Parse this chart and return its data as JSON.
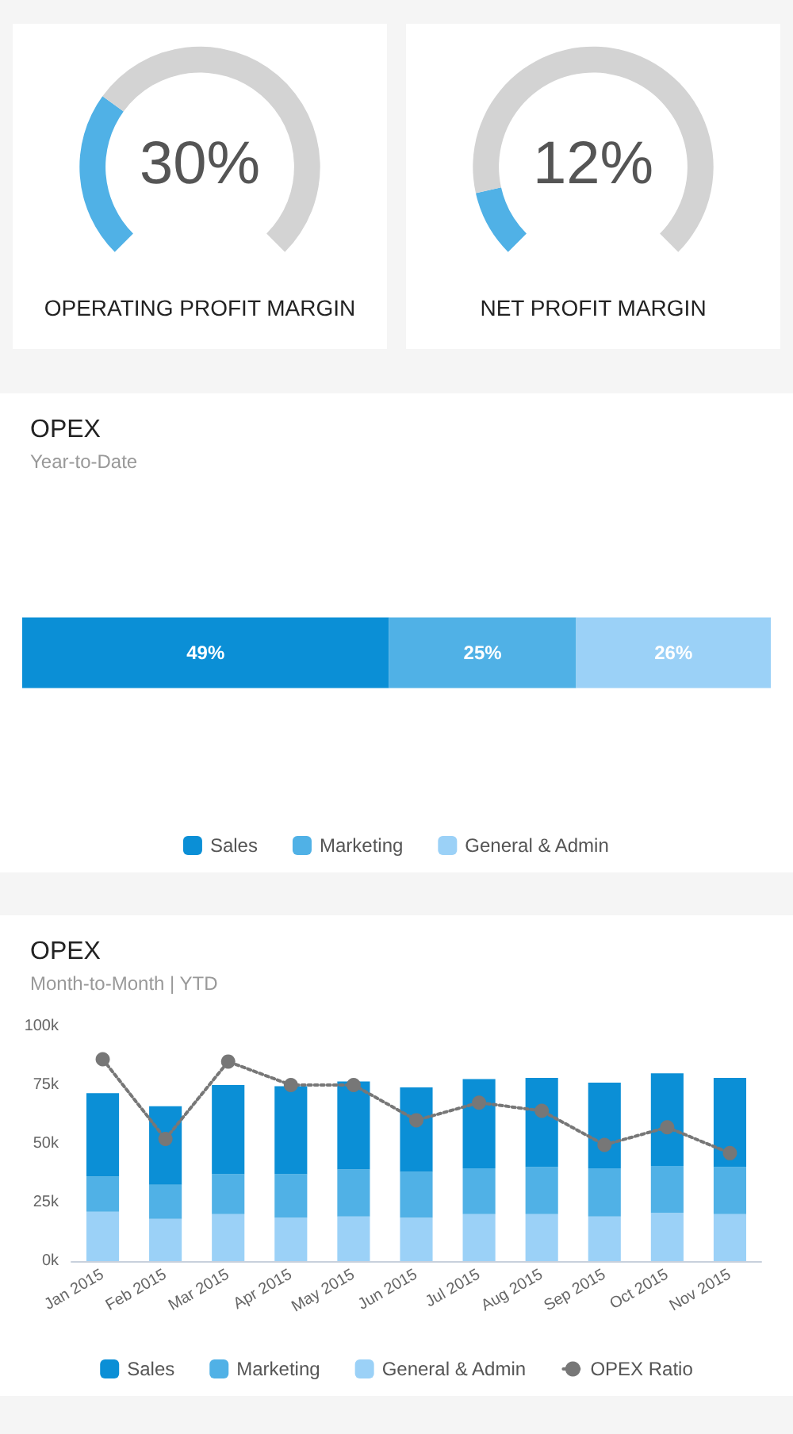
{
  "chart_data": [
    {
      "type": "donut",
      "title": "OPERATING PROFIT MARGIN",
      "annotations": [
        "30%"
      ],
      "categories": [
        null,
        null
      ],
      "values": [
        30,
        70
      ],
      "colors": [
        "#50b1e6",
        "#d3d3d3"
      ],
      "legend": false
    },
    {
      "type": "donut",
      "title": "NET PROFIT MARGIN",
      "annotations": [
        "12%"
      ],
      "categories": [
        null,
        null
      ],
      "values": [
        12,
        88
      ],
      "colors": [
        "#50b1e6",
        "#d3d3d3"
      ],
      "legend": false
    },
    {
      "type": "bar",
      "title": "OPEX",
      "subtitle": "Year-to-Date",
      "orientation": "horizontal",
      "stacked": true,
      "categories": [
        null
      ],
      "legend": "bottom",
      "series": [
        {
          "name": "Sales",
          "color": "#0b8fd6",
          "values": [
            49
          ],
          "value_labels": [
            "49%"
          ]
        },
        {
          "name": "Marketing",
          "color": "#50b1e6",
          "values": [
            25
          ],
          "value_labels": [
            "25%"
          ]
        },
        {
          "name": "General & Admin",
          "color": "#9bd1f7",
          "values": [
            26
          ],
          "value_labels": [
            "26%"
          ]
        }
      ]
    },
    {
      "type": "bar",
      "title": "OPEX",
      "subtitle": "Month-to-Month | YTD",
      "stacked": true,
      "categories": [
        "Jan 2015",
        "Feb 2015",
        "Mar 2015",
        "Apr 2015",
        "May 2015",
        "Jun 2015",
        "Jul 2015",
        "Aug 2015",
        "Sep 2015",
        "Oct 2015",
        "Nov 2015"
      ],
      "ylim": [
        0,
        100
      ],
      "yticks": [
        {
          "value": 0,
          "label": "0k"
        },
        {
          "value": 25,
          "label": "25k"
        },
        {
          "value": 50,
          "label": "50k"
        },
        {
          "value": 75,
          "label": "75k"
        },
        {
          "value": 100,
          "label": "100k"
        }
      ],
      "grid": false,
      "legend": "bottom",
      "marker": "circle",
      "line_style": "dotted",
      "series": [
        {
          "name": "General & Admin",
          "color": "#9bd1f7",
          "values": [
            21,
            18,
            20,
            18.5,
            19,
            18.5,
            20,
            20,
            19,
            20.5,
            20
          ]
        },
        {
          "name": "Marketing",
          "color": "#50b1e6",
          "values": [
            15,
            14.5,
            17,
            18.5,
            20,
            19.5,
            19.5,
            20,
            20.5,
            20,
            20
          ]
        },
        {
          "name": "Sales",
          "color": "#0b8fd6",
          "values": [
            35.5,
            33.5,
            38,
            37.5,
            37.5,
            36,
            38,
            38,
            36.5,
            39.5,
            38
          ]
        },
        {
          "name": "OPEX Ratio",
          "type": "line",
          "color": "#777777",
          "values": [
            86,
            52,
            85,
            75,
            75,
            60,
            67.5,
            64,
            49.5,
            57,
            46
          ]
        }
      ]
    }
  ]
}
